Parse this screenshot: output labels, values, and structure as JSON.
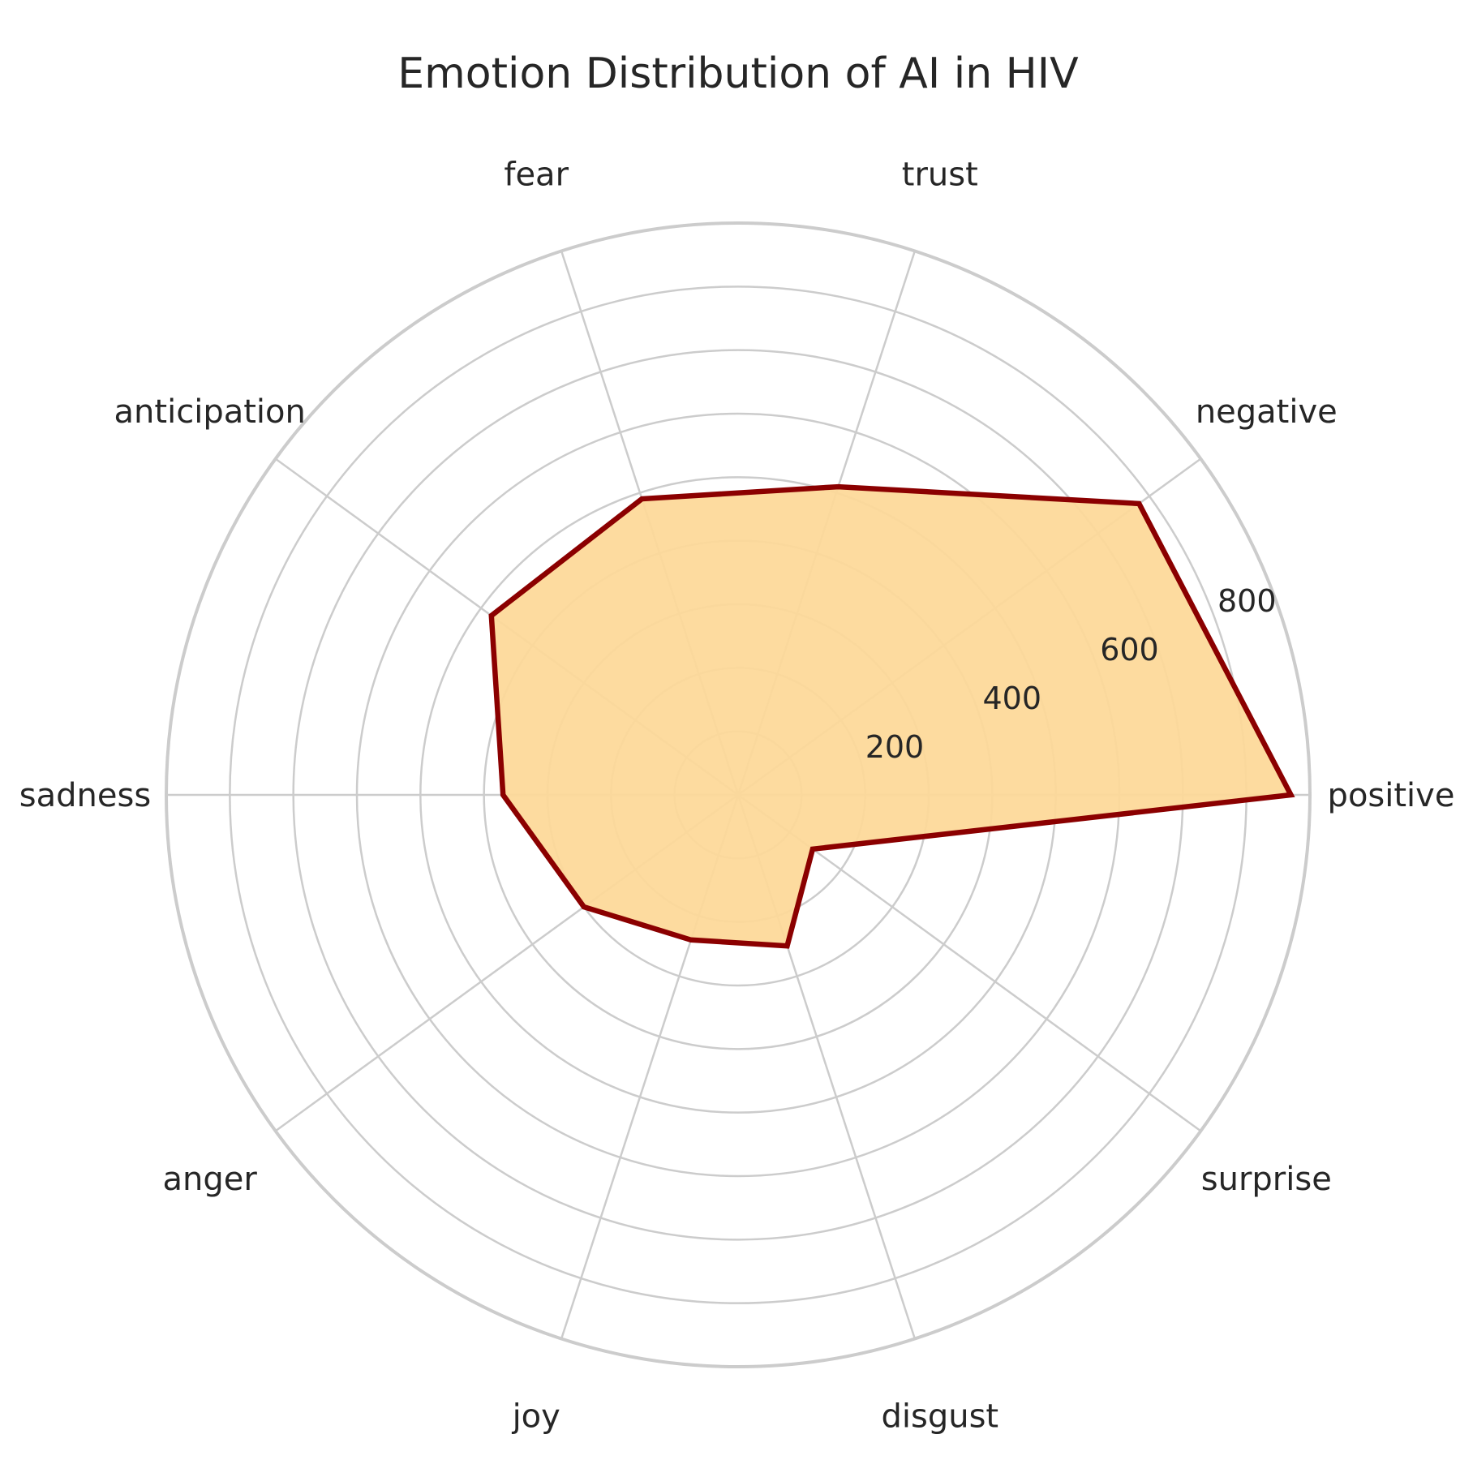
{
  "chart_data": {
    "type": "radar",
    "title": "Emotion Distribution of AI in HIV",
    "categories": [
      "positive",
      "negative",
      "trust",
      "fear",
      "anticipation",
      "sadness",
      "anger",
      "joy",
      "disgust",
      "surprise"
    ],
    "series": [
      {
        "values": [
          870,
          780,
          510,
          490,
          480,
          370,
          300,
          240,
          250,
          145
        ]
      }
    ],
    "rlim": [
      0,
      900
    ],
    "rticks": [
      200,
      400,
      600,
      800
    ],
    "rtick_labels": [
      "200",
      "400",
      "600",
      "800"
    ],
    "grid": true,
    "colors": {
      "fill": "#FDD898",
      "line": "#8B0000",
      "grid": "#cccccc"
    }
  }
}
